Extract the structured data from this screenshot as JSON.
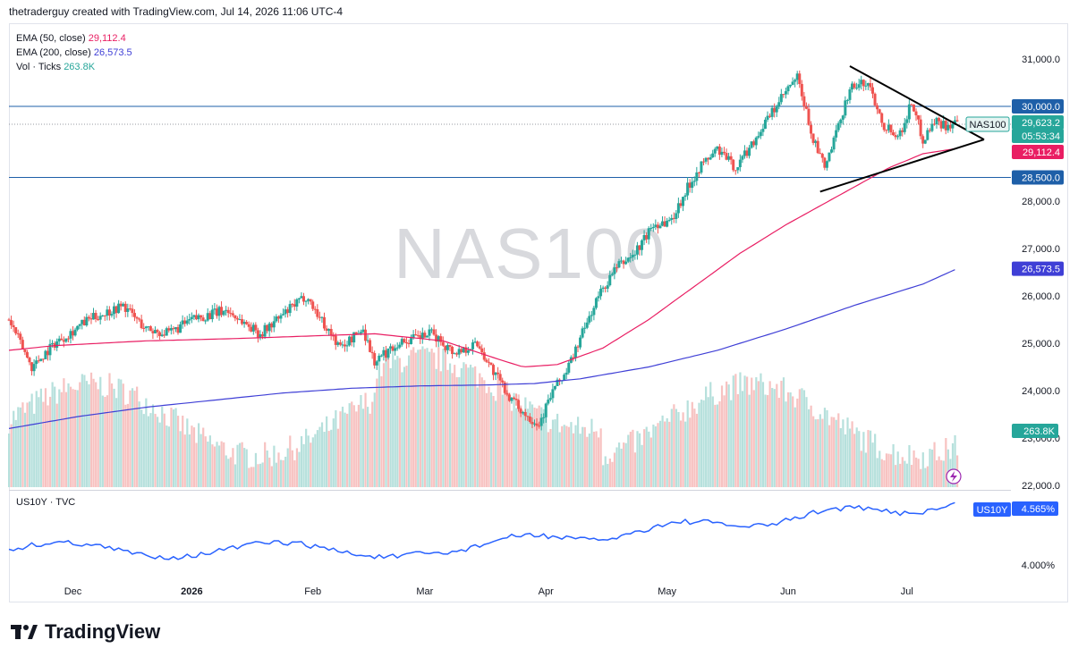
{
  "header": {
    "text": "thetraderguy created with TradingView.com, Jul 14, 2026 11:06 UTC-4"
  },
  "watermark": "NAS100",
  "legend": [
    {
      "name": "EMA (50, close)",
      "value": "29,112.4",
      "color": "#e91e63"
    },
    {
      "name": "EMA (200, close)",
      "value": "26,573.5",
      "color": "#3f3fd6"
    },
    {
      "name": "Vol · Ticks",
      "value": "263.8K",
      "color": "#26a69a"
    }
  ],
  "sub_legend": {
    "name": "US10Y · TVC"
  },
  "footer": {
    "brand": "TradingView"
  },
  "colors": {
    "up": "#26a69a",
    "down": "#ef5350",
    "ema50": "#e91e63",
    "ema200": "#3f3fd6",
    "level": "#1e5fa8",
    "us10y": "#2962ff",
    "vol_up": "#b6e0dc",
    "vol_down": "#f7c2c1"
  },
  "price_labels": [
    {
      "id": "level-30000",
      "text": "30,000.0",
      "color": "#1e5fa8"
    },
    {
      "id": "last",
      "text": "29,623.2",
      "color": "#26a69a"
    },
    {
      "id": "timer",
      "text": "05:53:34",
      "color": "#26a69a"
    },
    {
      "id": "ema50",
      "text": "29,112.4",
      "color": "#e91e63"
    },
    {
      "id": "level-28500",
      "text": "28,500.0",
      "color": "#1e5fa8"
    },
    {
      "id": "ema200",
      "text": "26,573.5",
      "color": "#3f3fd6"
    },
    {
      "id": "vol",
      "text": "263.8K",
      "color": "#26a69a"
    },
    {
      "id": "us10y",
      "text": "4.565%",
      "color": "#2962ff"
    }
  ],
  "symbol_tag": "NAS100",
  "us10y_tag": "US10Y",
  "chart_data": {
    "type": "candlestick",
    "symbol": "NAS100",
    "y_axis": {
      "ticks": [
        "31,000.0",
        "30,000.0",
        "29,000.0",
        "28,000.0",
        "27,000.0",
        "26,000.0",
        "25,000.0",
        "24,000.0",
        "23,000.0",
        "22,000.0"
      ],
      "values": [
        31000,
        30000,
        29000,
        28000,
        27000,
        26000,
        25000,
        24000,
        23000,
        22000
      ],
      "range": [
        22000,
        31500
      ]
    },
    "x_axis": {
      "ticks": [
        "Dec",
        "2026",
        "Feb",
        "Mar",
        "Apr",
        "May",
        "Jun",
        "Jul"
      ]
    },
    "horizontal_levels": [
      30000,
      28500
    ],
    "last_price": 29623.2,
    "ema50": [
      [
        0,
        24850
      ],
      [
        20,
        24950
      ],
      [
        60,
        25050
      ],
      [
        100,
        25100
      ],
      [
        130,
        25150
      ],
      [
        160,
        25200
      ],
      [
        190,
        25050
      ],
      [
        215,
        24650
      ],
      [
        225,
        24500
      ],
      [
        240,
        24550
      ],
      [
        260,
        24900
      ],
      [
        280,
        25500
      ],
      [
        300,
        26200
      ],
      [
        320,
        26900
      ],
      [
        340,
        27500
      ],
      [
        355,
        27900
      ],
      [
        370,
        28300
      ],
      [
        385,
        28700
      ],
      [
        400,
        29000
      ],
      [
        415,
        29112.4
      ]
    ],
    "ema200": [
      [
        0,
        23200
      ],
      [
        30,
        23450
      ],
      [
        60,
        23650
      ],
      [
        90,
        23800
      ],
      [
        120,
        23950
      ],
      [
        150,
        24050
      ],
      [
        180,
        24100
      ],
      [
        210,
        24120
      ],
      [
        230,
        24150
      ],
      [
        250,
        24250
      ],
      [
        280,
        24500
      ],
      [
        310,
        24850
      ],
      [
        340,
        25300
      ],
      [
        370,
        25800
      ],
      [
        400,
        26250
      ],
      [
        415,
        26573.5
      ]
    ],
    "ohlc_anchors": [
      [
        0,
        25500
      ],
      [
        10,
        24500
      ],
      [
        20,
        25000
      ],
      [
        35,
        25500
      ],
      [
        50,
        25800
      ],
      [
        60,
        25300
      ],
      [
        70,
        25200
      ],
      [
        80,
        25500
      ],
      [
        95,
        25700
      ],
      [
        110,
        25200
      ],
      [
        120,
        25600
      ],
      [
        130,
        26000
      ],
      [
        138,
        25400
      ],
      [
        145,
        24900
      ],
      [
        155,
        25300
      ],
      [
        160,
        24600
      ],
      [
        170,
        25000
      ],
      [
        185,
        25200
      ],
      [
        195,
        24800
      ],
      [
        205,
        25000
      ],
      [
        212,
        24400
      ],
      [
        220,
        23800
      ],
      [
        226,
        23500
      ],
      [
        232,
        23300
      ],
      [
        238,
        24000
      ],
      [
        244,
        24400
      ],
      [
        250,
        25100
      ],
      [
        258,
        26000
      ],
      [
        266,
        26600
      ],
      [
        274,
        26900
      ],
      [
        282,
        27500
      ],
      [
        290,
        27600
      ],
      [
        296,
        28200
      ],
      [
        302,
        28700
      ],
      [
        310,
        29100
      ],
      [
        318,
        28700
      ],
      [
        325,
        29200
      ],
      [
        333,
        29800
      ],
      [
        340,
        30300
      ],
      [
        345,
        30600
      ],
      [
        352,
        29300
      ],
      [
        357,
        28700
      ],
      [
        362,
        29400
      ],
      [
        368,
        30400
      ],
      [
        376,
        30500
      ],
      [
        383,
        29600
      ],
      [
        390,
        29400
      ],
      [
        395,
        30100
      ],
      [
        400,
        29300
      ],
      [
        405,
        29700
      ],
      [
        410,
        29600
      ],
      [
        415,
        29623.2
      ]
    ],
    "triangle": {
      "upper": [
        [
          368,
          30850
        ],
        [
          424,
          29300
        ]
      ],
      "lower": [
        [
          355,
          28200
        ],
        [
          424,
          29300
        ]
      ]
    },
    "series": [
      {
        "name": "US10Y",
        "pane": "lower",
        "last_value": "4.565%",
        "y_ticks": [
          "4.000%"
        ]
      }
    ]
  }
}
